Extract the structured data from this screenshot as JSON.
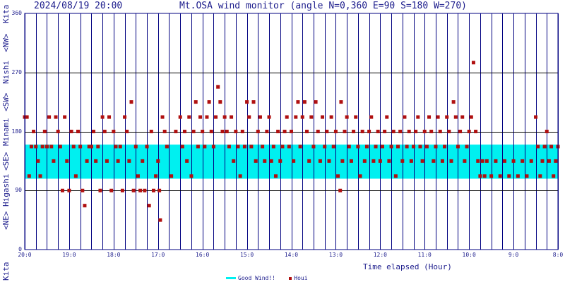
{
  "header": {
    "datetime": "2024/08/19 20:00",
    "title": "Mt.OSA wind monitor (angle N=0,360 E=90 S=180 W=270)"
  },
  "direction_labels": [
    "Kita",
    "Higashi",
    "Minami",
    "Nishi",
    "Kita"
  ],
  "sector_labels": [
    "<NE>",
    "<SE>",
    "<SW>",
    "<NW>"
  ],
  "colors": {
    "axis": "#000080",
    "text": "#1c1c8c",
    "good_band": "#00f0f0",
    "houi": "#b01010",
    "hline": "#000000"
  },
  "chart_data": {
    "type": "scatter",
    "xlabel": "Time elapsed (Hour)",
    "x_ticks": [
      "20:0",
      "19:0",
      "18:0",
      "17:0",
      "16:0",
      "15:0",
      "14:0",
      "13:0",
      "12:0",
      "11:0",
      "10:0",
      "9:0",
      "8:0"
    ],
    "ylim": [
      0,
      360
    ],
    "y_ticks": [
      0,
      90,
      180,
      270,
      360
    ],
    "grid": true,
    "legend_position": "bottom",
    "good_wind_range": [
      108,
      160
    ],
    "series": [
      {
        "name": "Good Wind!!",
        "type": "band",
        "from": 108,
        "to": 160
      },
      {
        "name": "Houi",
        "type": "scatter",
        "points": [
          [
            20.0,
            202
          ],
          [
            19.95,
            202
          ],
          [
            19.9,
            112
          ],
          [
            19.85,
            157
          ],
          [
            19.8,
            180
          ],
          [
            19.75,
            157
          ],
          [
            19.7,
            135
          ],
          [
            19.65,
            112
          ],
          [
            19.6,
            157
          ],
          [
            19.55,
            180
          ],
          [
            19.5,
            157
          ],
          [
            19.45,
            202
          ],
          [
            19.4,
            157
          ],
          [
            19.35,
            135
          ],
          [
            19.3,
            202
          ],
          [
            19.25,
            180
          ],
          [
            19.2,
            157
          ],
          [
            19.15,
            90
          ],
          [
            19.1,
            202
          ],
          [
            19.05,
            135
          ],
          [
            19.0,
            90
          ],
          [
            18.95,
            180
          ],
          [
            18.9,
            157
          ],
          [
            18.85,
            112
          ],
          [
            18.8,
            180
          ],
          [
            18.75,
            157
          ],
          [
            18.7,
            90
          ],
          [
            18.65,
            67
          ],
          [
            18.6,
            135
          ],
          [
            18.55,
            157
          ],
          [
            18.5,
            157
          ],
          [
            18.45,
            180
          ],
          [
            18.4,
            135
          ],
          [
            18.35,
            157
          ],
          [
            18.3,
            90
          ],
          [
            18.25,
            202
          ],
          [
            18.2,
            180
          ],
          [
            18.15,
            135
          ],
          [
            18.1,
            202
          ],
          [
            18.05,
            90
          ],
          [
            18.0,
            180
          ],
          [
            17.95,
            157
          ],
          [
            17.9,
            135
          ],
          [
            17.85,
            157
          ],
          [
            17.8,
            90
          ],
          [
            17.75,
            202
          ],
          [
            17.7,
            180
          ],
          [
            17.65,
            135
          ],
          [
            17.6,
            225
          ],
          [
            17.55,
            90
          ],
          [
            17.5,
            157
          ],
          [
            17.45,
            112
          ],
          [
            17.4,
            90
          ],
          [
            17.35,
            135
          ],
          [
            17.3,
            90
          ],
          [
            17.25,
            157
          ],
          [
            17.2,
            67
          ],
          [
            17.15,
            180
          ],
          [
            17.1,
            90
          ],
          [
            17.05,
            112
          ],
          [
            17.0,
            135
          ],
          [
            16.97,
            90
          ],
          [
            16.95,
            45
          ],
          [
            16.9,
            202
          ],
          [
            16.85,
            180
          ],
          [
            16.8,
            157
          ],
          [
            16.7,
            112
          ],
          [
            16.6,
            180
          ],
          [
            16.5,
            202
          ],
          [
            16.45,
            157
          ],
          [
            16.4,
            180
          ],
          [
            16.35,
            135
          ],
          [
            16.3,
            202
          ],
          [
            16.25,
            112
          ],
          [
            16.2,
            180
          ],
          [
            16.15,
            225
          ],
          [
            16.1,
            157
          ],
          [
            16.05,
            202
          ],
          [
            16.0,
            180
          ],
          [
            15.95,
            157
          ],
          [
            15.9,
            202
          ],
          [
            15.85,
            225
          ],
          [
            15.8,
            180
          ],
          [
            15.75,
            157
          ],
          [
            15.7,
            202
          ],
          [
            15.65,
            248
          ],
          [
            15.6,
            225
          ],
          [
            15.55,
            180
          ],
          [
            15.5,
            202
          ],
          [
            15.45,
            180
          ],
          [
            15.4,
            157
          ],
          [
            15.35,
            202
          ],
          [
            15.3,
            135
          ],
          [
            15.25,
            180
          ],
          [
            15.2,
            157
          ],
          [
            15.15,
            112
          ],
          [
            15.1,
            180
          ],
          [
            15.05,
            157
          ],
          [
            15.0,
            225
          ],
          [
            14.95,
            202
          ],
          [
            14.9,
            157
          ],
          [
            14.85,
            225
          ],
          [
            14.8,
            135
          ],
          [
            14.75,
            180
          ],
          [
            14.7,
            202
          ],
          [
            14.65,
            157
          ],
          [
            14.6,
            135
          ],
          [
            14.55,
            180
          ],
          [
            14.5,
            202
          ],
          [
            14.45,
            135
          ],
          [
            14.4,
            157
          ],
          [
            14.35,
            112
          ],
          [
            14.3,
            180
          ],
          [
            14.25,
            135
          ],
          [
            14.2,
            157
          ],
          [
            14.15,
            180
          ],
          [
            14.1,
            202
          ],
          [
            14.05,
            157
          ],
          [
            14.0,
            180
          ],
          [
            13.95,
            135
          ],
          [
            13.9,
            202
          ],
          [
            13.85,
            225
          ],
          [
            13.8,
            157
          ],
          [
            13.75,
            202
          ],
          [
            13.7,
            225
          ],
          [
            13.65,
            180
          ],
          [
            13.6,
            135
          ],
          [
            13.55,
            202
          ],
          [
            13.5,
            157
          ],
          [
            13.45,
            225
          ],
          [
            13.4,
            180
          ],
          [
            13.35,
            135
          ],
          [
            13.3,
            202
          ],
          [
            13.25,
            157
          ],
          [
            13.2,
            180
          ],
          [
            13.15,
            135
          ],
          [
            13.1,
            202
          ],
          [
            13.05,
            157
          ],
          [
            13.0,
            180
          ],
          [
            12.95,
            112
          ],
          [
            12.9,
            90
          ],
          [
            12.88,
            225
          ],
          [
            12.85,
            135
          ],
          [
            12.8,
            180
          ],
          [
            12.75,
            202
          ],
          [
            12.7,
            157
          ],
          [
            12.65,
            135
          ],
          [
            12.6,
            180
          ],
          [
            12.55,
            202
          ],
          [
            12.5,
            157
          ],
          [
            12.45,
            112
          ],
          [
            12.4,
            180
          ],
          [
            12.35,
            135
          ],
          [
            12.3,
            157
          ],
          [
            12.25,
            180
          ],
          [
            12.2,
            202
          ],
          [
            12.15,
            135
          ],
          [
            12.1,
            157
          ],
          [
            12.05,
            180
          ],
          [
            12.0,
            135
          ],
          [
            11.95,
            157
          ],
          [
            11.9,
            180
          ],
          [
            11.85,
            202
          ],
          [
            11.8,
            135
          ],
          [
            11.75,
            157
          ],
          [
            11.7,
            180
          ],
          [
            11.65,
            112
          ],
          [
            11.6,
            157
          ],
          [
            11.55,
            180
          ],
          [
            11.5,
            135
          ],
          [
            11.45,
            202
          ],
          [
            11.4,
            157
          ],
          [
            11.35,
            180
          ],
          [
            11.3,
            135
          ],
          [
            11.25,
            157
          ],
          [
            11.2,
            180
          ],
          [
            11.15,
            202
          ],
          [
            11.1,
            157
          ],
          [
            11.05,
            135
          ],
          [
            11.0,
            180
          ],
          [
            10.95,
            157
          ],
          [
            10.9,
            202
          ],
          [
            10.85,
            180
          ],
          [
            10.8,
            135
          ],
          [
            10.75,
            157
          ],
          [
            10.7,
            202
          ],
          [
            10.65,
            180
          ],
          [
            10.6,
            135
          ],
          [
            10.55,
            157
          ],
          [
            10.5,
            202
          ],
          [
            10.45,
            180
          ],
          [
            10.4,
            135
          ],
          [
            10.35,
            225
          ],
          [
            10.3,
            202
          ],
          [
            10.25,
            157
          ],
          [
            10.2,
            180
          ],
          [
            10.15,
            202
          ],
          [
            10.1,
            135
          ],
          [
            10.05,
            157
          ],
          [
            10.0,
            180
          ],
          [
            9.95,
            202
          ],
          [
            9.9,
            285
          ],
          [
            9.85,
            180
          ],
          [
            9.8,
            135
          ],
          [
            9.75,
            112
          ],
          [
            9.7,
            135
          ],
          [
            9.65,
            112
          ],
          [
            9.6,
            135
          ],
          [
            9.5,
            112
          ],
          [
            9.4,
            135
          ],
          [
            9.3,
            112
          ],
          [
            9.2,
            135
          ],
          [
            9.1,
            112
          ],
          [
            9.0,
            135
          ],
          [
            8.9,
            112
          ],
          [
            8.8,
            135
          ],
          [
            8.7,
            112
          ],
          [
            8.6,
            135
          ],
          [
            8.5,
            202
          ],
          [
            8.45,
            157
          ],
          [
            8.4,
            112
          ],
          [
            8.35,
            135
          ],
          [
            8.3,
            157
          ],
          [
            8.25,
            180
          ],
          [
            8.2,
            135
          ],
          [
            8.15,
            157
          ],
          [
            8.1,
            112
          ],
          [
            8.05,
            135
          ],
          [
            8.0,
            157
          ]
        ]
      }
    ]
  }
}
